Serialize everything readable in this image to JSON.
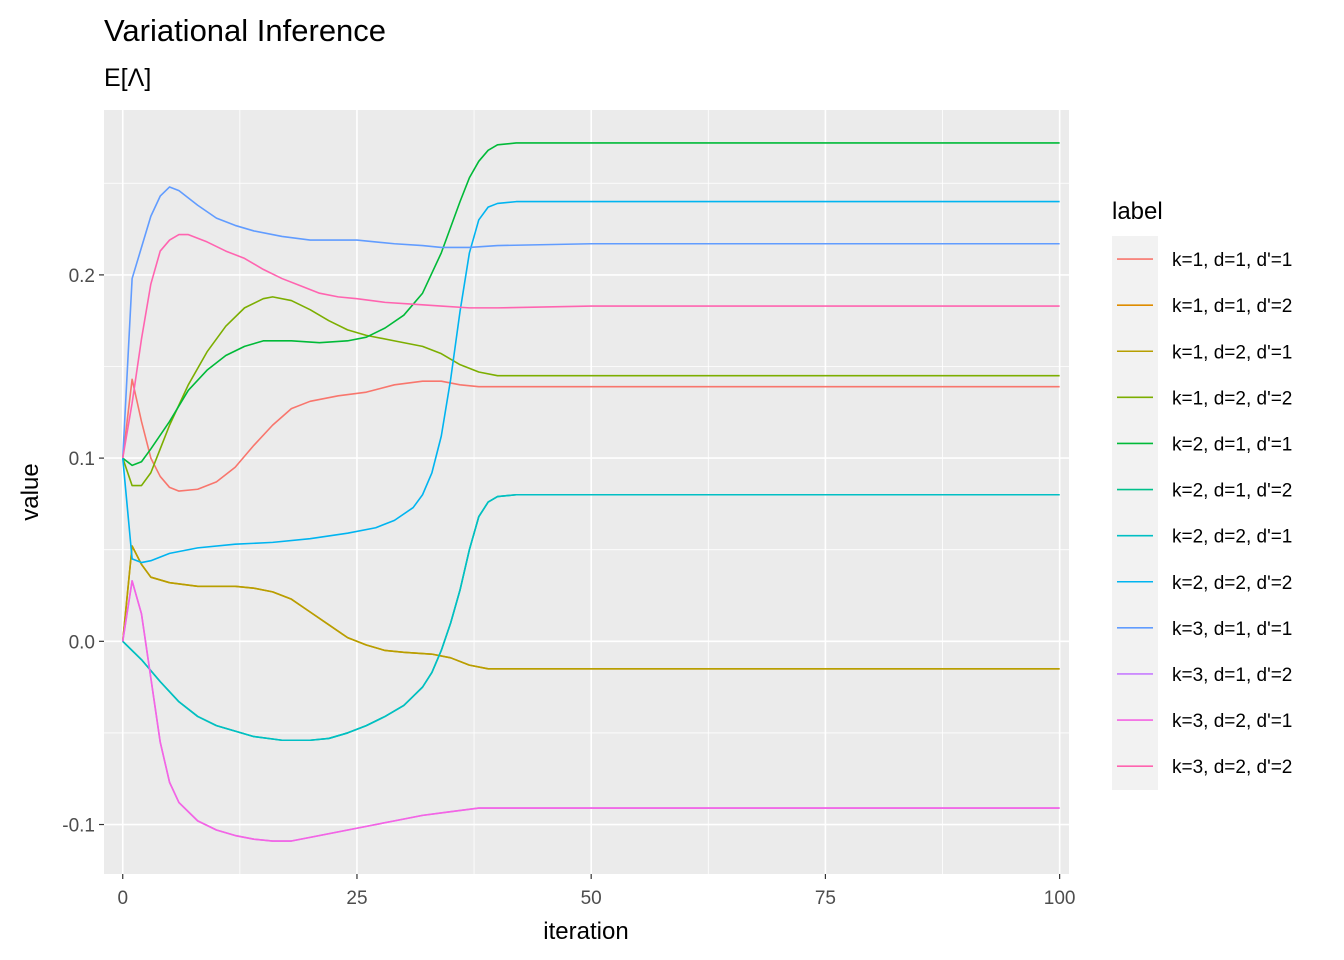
{
  "chart_data": {
    "type": "line",
    "title": "Variational Inference",
    "subtitle": "E[Λ]",
    "xlabel": "iteration",
    "ylabel": "value",
    "xlim": [
      -2,
      101
    ],
    "ylim": [
      -0.127,
      0.29
    ],
    "x_ticks": [
      0,
      25,
      50,
      75,
      100
    ],
    "x_tick_labels": [
      "0",
      "25",
      "50",
      "75",
      "100"
    ],
    "y_ticks": [
      -0.1,
      0.0,
      0.1,
      0.2
    ],
    "y_tick_labels": [
      "-0.1",
      "0.0",
      "0.1",
      "0.2"
    ],
    "grid": true,
    "legend_title": "label",
    "legend_position": "right",
    "series": [
      {
        "name": "k=1, d=1, d'=1",
        "color": "#F8766D",
        "points": [
          [
            0,
            0.1
          ],
          [
            1,
            0.143
          ],
          [
            2,
            0.12
          ],
          [
            3,
            0.1
          ],
          [
            4,
            0.09
          ],
          [
            5,
            0.084
          ],
          [
            6,
            0.082
          ],
          [
            8,
            0.083
          ],
          [
            10,
            0.087
          ],
          [
            12,
            0.095
          ],
          [
            14,
            0.107
          ],
          [
            16,
            0.118
          ],
          [
            18,
            0.127
          ],
          [
            20,
            0.131
          ],
          [
            23,
            0.134
          ],
          [
            26,
            0.136
          ],
          [
            29,
            0.14
          ],
          [
            32,
            0.142
          ],
          [
            34,
            0.142
          ],
          [
            36,
            0.14
          ],
          [
            38,
            0.139
          ],
          [
            45,
            0.139
          ],
          [
            60,
            0.139
          ],
          [
            80,
            0.139
          ],
          [
            100,
            0.139
          ]
        ]
      },
      {
        "name": "k=1, d=1, d'=2",
        "color": "#DE8C00",
        "points": [
          [
            0,
            0.0
          ],
          [
            1,
            0.052
          ],
          [
            2,
            0.042
          ],
          [
            3,
            0.035
          ],
          [
            5,
            0.032
          ],
          [
            8,
            0.03
          ],
          [
            12,
            0.03
          ],
          [
            14,
            0.029
          ],
          [
            16,
            0.027
          ],
          [
            18,
            0.023
          ],
          [
            20,
            0.016
          ],
          [
            22,
            0.009
          ],
          [
            24,
            0.002
          ],
          [
            26,
            -0.002
          ],
          [
            28,
            -0.005
          ],
          [
            30,
            -0.006
          ],
          [
            33,
            -0.007
          ],
          [
            35,
            -0.009
          ],
          [
            37,
            -0.013
          ],
          [
            39,
            -0.015
          ],
          [
            45,
            -0.015
          ],
          [
            60,
            -0.015
          ],
          [
            80,
            -0.015
          ],
          [
            100,
            -0.015
          ]
        ]
      },
      {
        "name": "k=1, d=2, d'=1",
        "color": "#B79F00",
        "points": [
          [
            0,
            0.0
          ],
          [
            1,
            0.052
          ],
          [
            2,
            0.042
          ],
          [
            3,
            0.035
          ],
          [
            5,
            0.032
          ],
          [
            8,
            0.03
          ],
          [
            12,
            0.03
          ],
          [
            14,
            0.029
          ],
          [
            16,
            0.027
          ],
          [
            18,
            0.023
          ],
          [
            20,
            0.016
          ],
          [
            22,
            0.009
          ],
          [
            24,
            0.002
          ],
          [
            26,
            -0.002
          ],
          [
            28,
            -0.005
          ],
          [
            30,
            -0.006
          ],
          [
            33,
            -0.007
          ],
          [
            35,
            -0.009
          ],
          [
            37,
            -0.013
          ],
          [
            39,
            -0.015
          ],
          [
            45,
            -0.015
          ],
          [
            60,
            -0.015
          ],
          [
            80,
            -0.015
          ],
          [
            100,
            -0.015
          ]
        ]
      },
      {
        "name": "k=1, d=2, d'=2",
        "color": "#7CAE00",
        "points": [
          [
            0,
            0.1
          ],
          [
            1,
            0.085
          ],
          [
            2,
            0.085
          ],
          [
            3,
            0.092
          ],
          [
            4,
            0.105
          ],
          [
            5,
            0.118
          ],
          [
            7,
            0.14
          ],
          [
            9,
            0.158
          ],
          [
            11,
            0.172
          ],
          [
            13,
            0.182
          ],
          [
            15,
            0.187
          ],
          [
            16,
            0.188
          ],
          [
            18,
            0.186
          ],
          [
            20,
            0.181
          ],
          [
            22,
            0.175
          ],
          [
            24,
            0.17
          ],
          [
            26,
            0.167
          ],
          [
            29,
            0.164
          ],
          [
            32,
            0.161
          ],
          [
            34,
            0.157
          ],
          [
            36,
            0.151
          ],
          [
            38,
            0.147
          ],
          [
            40,
            0.145
          ],
          [
            50,
            0.145
          ],
          [
            70,
            0.145
          ],
          [
            100,
            0.145
          ]
        ]
      },
      {
        "name": "k=2, d=1, d'=1",
        "color": "#00BA38",
        "points": [
          [
            0,
            0.1
          ],
          [
            1,
            0.096
          ],
          [
            2,
            0.098
          ],
          [
            3,
            0.105
          ],
          [
            5,
            0.12
          ],
          [
            7,
            0.137
          ],
          [
            9,
            0.148
          ],
          [
            11,
            0.156
          ],
          [
            13,
            0.161
          ],
          [
            15,
            0.164
          ],
          [
            18,
            0.164
          ],
          [
            21,
            0.163
          ],
          [
            24,
            0.164
          ],
          [
            26,
            0.166
          ],
          [
            28,
            0.171
          ],
          [
            30,
            0.178
          ],
          [
            32,
            0.19
          ],
          [
            34,
            0.212
          ],
          [
            36,
            0.24
          ],
          [
            37,
            0.253
          ],
          [
            38,
            0.262
          ],
          [
            39,
            0.268
          ],
          [
            40,
            0.271
          ],
          [
            42,
            0.272
          ],
          [
            50,
            0.272
          ],
          [
            70,
            0.272
          ],
          [
            100,
            0.272
          ]
        ]
      },
      {
        "name": "k=2, d=1, d'=2",
        "color": "#00C08B",
        "points": [
          [
            0,
            0.0
          ],
          [
            2,
            -0.01
          ],
          [
            4,
            -0.022
          ],
          [
            6,
            -0.033
          ],
          [
            8,
            -0.041
          ],
          [
            10,
            -0.046
          ],
          [
            12,
            -0.049
          ],
          [
            14,
            -0.052
          ],
          [
            17,
            -0.054
          ],
          [
            20,
            -0.054
          ],
          [
            22,
            -0.053
          ],
          [
            24,
            -0.05
          ],
          [
            26,
            -0.046
          ],
          [
            28,
            -0.041
          ],
          [
            30,
            -0.035
          ],
          [
            31,
            -0.03
          ],
          [
            32,
            -0.025
          ],
          [
            33,
            -0.017
          ],
          [
            34,
            -0.005
          ],
          [
            35,
            0.01
          ],
          [
            36,
            0.028
          ],
          [
            37,
            0.05
          ],
          [
            38,
            0.068
          ],
          [
            39,
            0.076
          ],
          [
            40,
            0.079
          ],
          [
            42,
            0.08
          ],
          [
            50,
            0.08
          ],
          [
            70,
            0.08
          ],
          [
            100,
            0.08
          ]
        ]
      },
      {
        "name": "k=2, d=2, d'=1",
        "color": "#00BFC4",
        "points": [
          [
            0,
            0.0
          ],
          [
            2,
            -0.01
          ],
          [
            4,
            -0.022
          ],
          [
            6,
            -0.033
          ],
          [
            8,
            -0.041
          ],
          [
            10,
            -0.046
          ],
          [
            12,
            -0.049
          ],
          [
            14,
            -0.052
          ],
          [
            17,
            -0.054
          ],
          [
            20,
            -0.054
          ],
          [
            22,
            -0.053
          ],
          [
            24,
            -0.05
          ],
          [
            26,
            -0.046
          ],
          [
            28,
            -0.041
          ],
          [
            30,
            -0.035
          ],
          [
            31,
            -0.03
          ],
          [
            32,
            -0.025
          ],
          [
            33,
            -0.017
          ],
          [
            34,
            -0.005
          ],
          [
            35,
            0.01
          ],
          [
            36,
            0.028
          ],
          [
            37,
            0.05
          ],
          [
            38,
            0.068
          ],
          [
            39,
            0.076
          ],
          [
            40,
            0.079
          ],
          [
            42,
            0.08
          ],
          [
            50,
            0.08
          ],
          [
            70,
            0.08
          ],
          [
            100,
            0.08
          ]
        ]
      },
      {
        "name": "k=2, d=2, d'=2",
        "color": "#00B4F0",
        "points": [
          [
            0,
            0.1
          ],
          [
            1,
            0.045
          ],
          [
            2,
            0.043
          ],
          [
            3,
            0.044
          ],
          [
            5,
            0.048
          ],
          [
            8,
            0.051
          ],
          [
            12,
            0.053
          ],
          [
            16,
            0.054
          ],
          [
            20,
            0.056
          ],
          [
            24,
            0.059
          ],
          [
            27,
            0.062
          ],
          [
            29,
            0.066
          ],
          [
            31,
            0.073
          ],
          [
            32,
            0.08
          ],
          [
            33,
            0.092
          ],
          [
            34,
            0.112
          ],
          [
            35,
            0.143
          ],
          [
            36,
            0.18
          ],
          [
            37,
            0.212
          ],
          [
            38,
            0.23
          ],
          [
            39,
            0.237
          ],
          [
            40,
            0.239
          ],
          [
            42,
            0.24
          ],
          [
            50,
            0.24
          ],
          [
            70,
            0.24
          ],
          [
            100,
            0.24
          ]
        ]
      },
      {
        "name": "k=3, d=1, d'=1",
        "color": "#619CFF",
        "points": [
          [
            0,
            0.1
          ],
          [
            1,
            0.198
          ],
          [
            2,
            0.215
          ],
          [
            3,
            0.232
          ],
          [
            4,
            0.243
          ],
          [
            5,
            0.248
          ],
          [
            6,
            0.246
          ],
          [
            8,
            0.238
          ],
          [
            10,
            0.231
          ],
          [
            12,
            0.227
          ],
          [
            14,
            0.224
          ],
          [
            17,
            0.221
          ],
          [
            20,
            0.219
          ],
          [
            25,
            0.219
          ],
          [
            29,
            0.217
          ],
          [
            32,
            0.216
          ],
          [
            34,
            0.215
          ],
          [
            37,
            0.215
          ],
          [
            40,
            0.216
          ],
          [
            50,
            0.217
          ],
          [
            70,
            0.217
          ],
          [
            100,
            0.217
          ]
        ]
      },
      {
        "name": "k=3, d=1, d'=2",
        "color": "#C77CFF",
        "points": [
          [
            0,
            0.0
          ],
          [
            1,
            0.033
          ],
          [
            2,
            0.015
          ],
          [
            3,
            -0.02
          ],
          [
            4,
            -0.055
          ],
          [
            5,
            -0.077
          ],
          [
            6,
            -0.088
          ],
          [
            8,
            -0.098
          ],
          [
            10,
            -0.103
          ],
          [
            12,
            -0.106
          ],
          [
            14,
            -0.108
          ],
          [
            16,
            -0.109
          ],
          [
            18,
            -0.109
          ],
          [
            20,
            -0.107
          ],
          [
            23,
            -0.104
          ],
          [
            26,
            -0.101
          ],
          [
            29,
            -0.098
          ],
          [
            32,
            -0.095
          ],
          [
            35,
            -0.093
          ],
          [
            38,
            -0.091
          ],
          [
            40,
            -0.091
          ],
          [
            50,
            -0.091
          ],
          [
            70,
            -0.091
          ],
          [
            100,
            -0.091
          ]
        ]
      },
      {
        "name": "k=3, d=2, d'=1",
        "color": "#F564E3",
        "points": [
          [
            0,
            0.0
          ],
          [
            1,
            0.033
          ],
          [
            2,
            0.015
          ],
          [
            3,
            -0.02
          ],
          [
            4,
            -0.055
          ],
          [
            5,
            -0.077
          ],
          [
            6,
            -0.088
          ],
          [
            8,
            -0.098
          ],
          [
            10,
            -0.103
          ],
          [
            12,
            -0.106
          ],
          [
            14,
            -0.108
          ],
          [
            16,
            -0.109
          ],
          [
            18,
            -0.109
          ],
          [
            20,
            -0.107
          ],
          [
            23,
            -0.104
          ],
          [
            26,
            -0.101
          ],
          [
            29,
            -0.098
          ],
          [
            32,
            -0.095
          ],
          [
            35,
            -0.093
          ],
          [
            38,
            -0.091
          ],
          [
            40,
            -0.091
          ],
          [
            50,
            -0.091
          ],
          [
            70,
            -0.091
          ],
          [
            100,
            -0.091
          ]
        ]
      },
      {
        "name": "k=3, d=2, d'=2",
        "color": "#FF64B0",
        "points": [
          [
            0,
            0.1
          ],
          [
            1,
            0.13
          ],
          [
            2,
            0.165
          ],
          [
            3,
            0.195
          ],
          [
            4,
            0.213
          ],
          [
            5,
            0.219
          ],
          [
            6,
            0.222
          ],
          [
            7,
            0.222
          ],
          [
            9,
            0.218
          ],
          [
            11,
            0.213
          ],
          [
            13,
            0.209
          ],
          [
            15,
            0.203
          ],
          [
            17,
            0.198
          ],
          [
            19,
            0.194
          ],
          [
            21,
            0.19
          ],
          [
            23,
            0.188
          ],
          [
            25,
            0.187
          ],
          [
            28,
            0.185
          ],
          [
            31,
            0.184
          ],
          [
            34,
            0.183
          ],
          [
            37,
            0.182
          ],
          [
            40,
            0.182
          ],
          [
            50,
            0.183
          ],
          [
            70,
            0.183
          ],
          [
            100,
            0.183
          ]
        ]
      }
    ]
  }
}
